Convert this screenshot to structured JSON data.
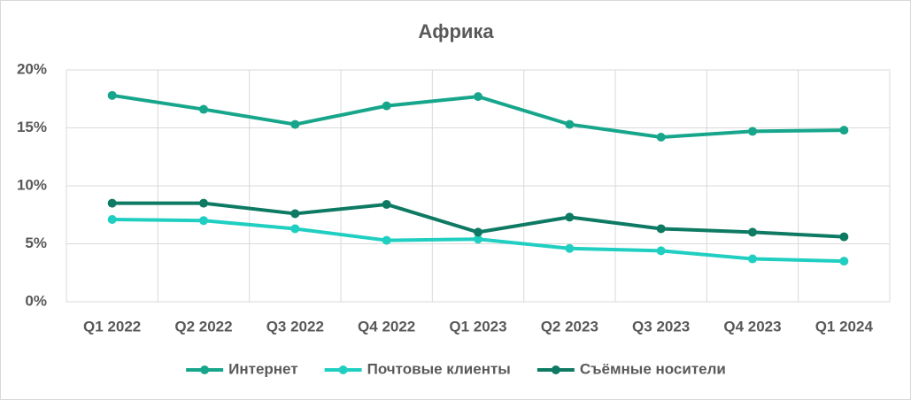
{
  "chart_data": {
    "type": "line",
    "title": "Африка",
    "categories": [
      "Q1 2022",
      "Q2 2022",
      "Q3 2022",
      "Q4 2022",
      "Q1 2023",
      "Q2 2023",
      "Q3 2023",
      "Q4 2023",
      "Q1 2024"
    ],
    "series": [
      {
        "name": "Интернет",
        "color": "#17a68b",
        "values": [
          17.8,
          16.6,
          15.3,
          16.9,
          17.7,
          15.3,
          14.2,
          14.7,
          14.8
        ]
      },
      {
        "name": "Почтовые клиенты",
        "color": "#20cfc1",
        "values": [
          7.1,
          7.0,
          6.3,
          5.3,
          5.4,
          4.6,
          4.4,
          3.7,
          3.5
        ]
      },
      {
        "name": "Съёмные носители",
        "color": "#0e7a63",
        "values": [
          8.5,
          8.5,
          7.6,
          8.4,
          6.0,
          7.3,
          6.3,
          6.0,
          5.6
        ]
      }
    ],
    "ylim": [
      0,
      20
    ],
    "yticks": [
      {
        "value": 0,
        "label": "0%"
      },
      {
        "value": 5,
        "label": "5%"
      },
      {
        "value": 10,
        "label": "10%"
      },
      {
        "value": 15,
        "label": "15%"
      },
      {
        "value": 20,
        "label": "20%"
      }
    ],
    "grid": true,
    "legend": "bottom"
  }
}
